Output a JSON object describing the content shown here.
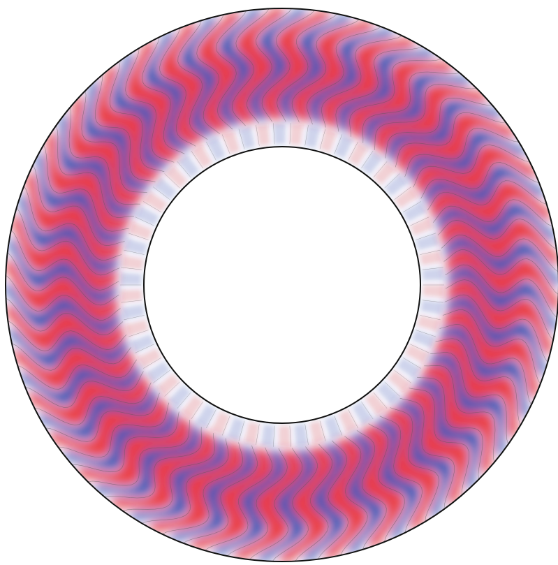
{
  "figure": {
    "kind": "annular-convection-field",
    "background": "#ffffff",
    "colors": {
      "positive": "#e8202a",
      "negative": "#2f3fa8",
      "neutral": "#f4f6fb",
      "contour": "#555555",
      "boundary": "#111111"
    },
    "pattern": {
      "outer_plumes": 38,
      "inner_cells": 58,
      "phase_tilt": 0.55
    }
  }
}
